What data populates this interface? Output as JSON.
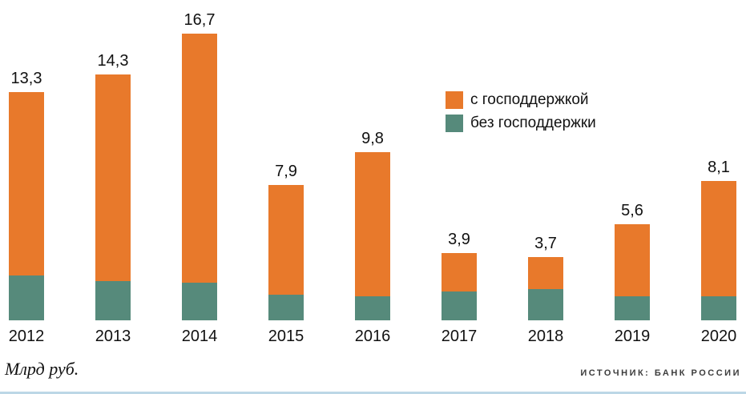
{
  "chart_data": {
    "type": "bar",
    "stacked": true,
    "title": "",
    "xlabel": "",
    "ylabel": "Млрд руб.",
    "ylim": [
      0,
      17
    ],
    "grid": false,
    "legend_position": "center-right",
    "categories": [
      "2012",
      "2013",
      "2014",
      "2015",
      "2016",
      "2017",
      "2018",
      "2019",
      "2020"
    ],
    "totals": [
      13.3,
      14.3,
      16.7,
      7.9,
      9.8,
      3.9,
      3.7,
      5.6,
      8.1
    ],
    "total_labels": [
      "13,3",
      "14,3",
      "16,7",
      "7,9",
      "9,8",
      "3,9",
      "3,7",
      "5,6",
      "8,1"
    ],
    "series": [
      {
        "name": "с господдержкой",
        "color": "#E8792B",
        "values": [
          10.7,
          12.0,
          14.5,
          6.4,
          8.4,
          2.2,
          1.9,
          4.2,
          6.7
        ]
      },
      {
        "name": "без господдержки",
        "color": "#568A7B",
        "values": [
          2.6,
          2.3,
          2.2,
          1.5,
          1.4,
          1.7,
          1.8,
          1.4,
          1.4
        ]
      }
    ]
  },
  "footer": {
    "units_caption": "Млрд руб.",
    "source": "ИСТОЧНИК:  БАНК  РОССИИ"
  },
  "colors": {
    "with_support": "#E8792B",
    "without_support": "#568A7B",
    "bottom_rule": "#BCD7E6",
    "text": "#111111"
  }
}
